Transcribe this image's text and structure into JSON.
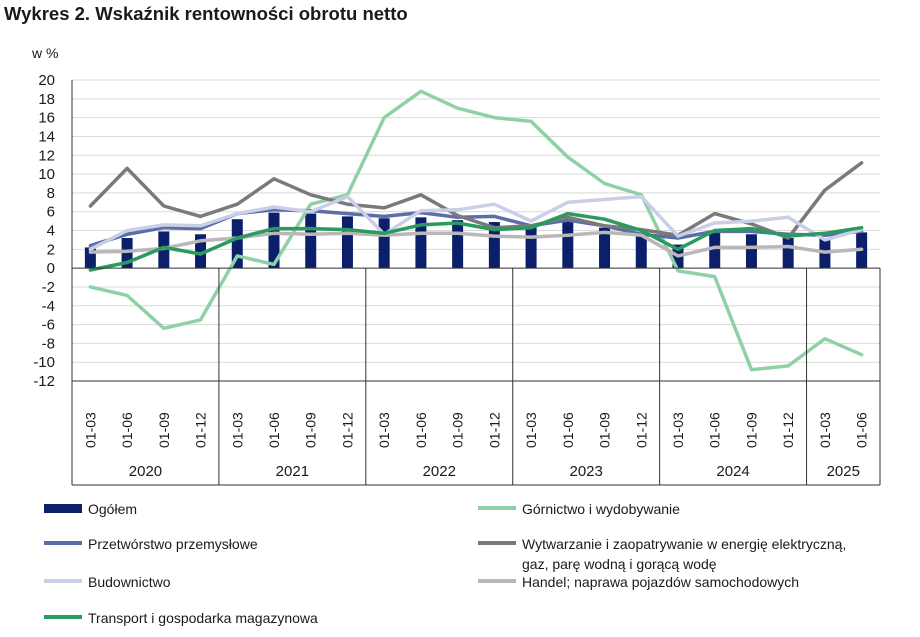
{
  "title": "Wykres 2. Wskaźnik rentowności obrotu netto",
  "chart_data": {
    "type": "bar+line",
    "unit_label": "w %",
    "ylim": [
      -12,
      20
    ],
    "yticks": [
      20,
      18,
      16,
      14,
      12,
      10,
      8,
      6,
      4,
      2,
      0,
      -2,
      -4,
      -6,
      -8,
      -10,
      -12
    ],
    "grid": true,
    "legend_position": "bottom",
    "categories": [
      "01-03",
      "01-06",
      "01-09",
      "01-12",
      "01-03",
      "01-06",
      "01-09",
      "01-12",
      "01-03",
      "01-06",
      "01-09",
      "01-12",
      "01-03",
      "01-06",
      "01-09",
      "01-12",
      "01-03",
      "01-06",
      "01-09",
      "01-12",
      "01-03",
      "01-06"
    ],
    "year_groups": [
      {
        "year": "2020",
        "count": 4
      },
      {
        "year": "2021",
        "count": 4
      },
      {
        "year": "2022",
        "count": 4
      },
      {
        "year": "2023",
        "count": 4
      },
      {
        "year": "2024",
        "count": 4
      },
      {
        "year": "2025",
        "count": 2
      }
    ],
    "bar_series": {
      "name": "Ogółem",
      "color": "#0b1f6b",
      "values": [
        2.2,
        3.2,
        3.9,
        3.6,
        5.2,
        5.9,
        5.8,
        5.5,
        5.3,
        5.4,
        5.1,
        4.9,
        4.4,
        4.9,
        4.3,
        3.8,
        2.5,
        3.8,
        3.6,
        3.2,
        3.1,
        3.8
      ]
    },
    "line_series": [
      {
        "name": "Górnictwo i wydobywanie",
        "color": "#8fd1a6",
        "width": 3.5,
        "values": [
          -2.0,
          -2.9,
          -6.4,
          -5.5,
          1.3,
          0.4,
          6.8,
          7.8,
          16.0,
          18.8,
          17.0,
          16.0,
          15.6,
          11.8,
          9.0,
          7.8,
          -0.3,
          -0.9,
          -10.8,
          -10.4,
          -7.5,
          -9.2
        ]
      },
      {
        "name": "Przetwórstwo przemysłowe",
        "color": "#5b6ea8",
        "width": 3.5,
        "values": [
          2.4,
          3.6,
          4.3,
          4.2,
          5.8,
          6.2,
          6.1,
          5.8,
          5.5,
          5.9,
          5.4,
          5.5,
          4.5,
          5.1,
          4.5,
          3.6,
          3.2,
          3.9,
          3.9,
          3.6,
          3.5,
          3.9
        ]
      },
      {
        "name": "Wytwarzanie i zaopatrywanie w energię elektryczną,\ngaz, parę wodną i gorącą wodę",
        "color": "#7a7a7a",
        "width": 3.5,
        "values": [
          6.6,
          10.6,
          6.6,
          5.5,
          6.8,
          9.5,
          7.8,
          6.8,
          6.4,
          7.8,
          5.6,
          4.3,
          4.5,
          5.4,
          4.5,
          4.1,
          3.5,
          5.8,
          4.7,
          3.2,
          8.3,
          11.2
        ]
      },
      {
        "name": "Budownictwo",
        "color": "#c9cfe6",
        "width": 3.5,
        "values": [
          2.0,
          4.0,
          4.6,
          4.5,
          5.8,
          6.5,
          6.0,
          7.6,
          3.6,
          6.1,
          6.2,
          6.8,
          5.0,
          7.0,
          7.3,
          7.6,
          3.4,
          4.8,
          5.0,
          5.4,
          3.0,
          4.1
        ]
      },
      {
        "name": "Handel; naprawa pojazdów samochodowych",
        "color": "#b8b8b8",
        "width": 3.5,
        "values": [
          1.7,
          1.8,
          2.1,
          2.9,
          3.2,
          3.7,
          3.6,
          3.7,
          3.5,
          3.7,
          3.7,
          3.4,
          3.3,
          3.5,
          3.8,
          3.5,
          1.3,
          2.2,
          2.2,
          2.3,
          1.7,
          2.0
        ]
      },
      {
        "name": "Transport i gospodarka magazynowa",
        "color": "#2a9a5e",
        "width": 3.5,
        "values": [
          -0.2,
          0.6,
          2.2,
          1.5,
          3.2,
          4.2,
          4.2,
          4.1,
          3.7,
          4.6,
          4.8,
          4.1,
          4.3,
          5.8,
          5.2,
          4.0,
          2.0,
          4.0,
          4.2,
          3.4,
          3.7,
          4.3
        ]
      }
    ]
  },
  "legend": [
    {
      "label": "Ogółem",
      "color": "#0b1f6b",
      "kind": "bar"
    },
    {
      "label": "Górnictwo i wydobywanie",
      "color": "#8fd1a6",
      "kind": "line"
    },
    {
      "label": "Przetwórstwo przemysłowe",
      "color": "#5b6ea8",
      "kind": "line"
    },
    {
      "label": "Wytwarzanie i zaopatrywanie w energię elektryczną,\ngaz, parę wodną i gorącą wodę",
      "color": "#7a7a7a",
      "kind": "line"
    },
    {
      "label": "Budownictwo",
      "color": "#c9cfe6",
      "kind": "line"
    },
    {
      "label": "Handel; naprawa pojazdów samochodowych",
      "color": "#b8b8b8",
      "kind": "line"
    },
    {
      "label": "Transport i gospodarka magazynowa",
      "color": "#2a9a5e",
      "kind": "line"
    }
  ]
}
